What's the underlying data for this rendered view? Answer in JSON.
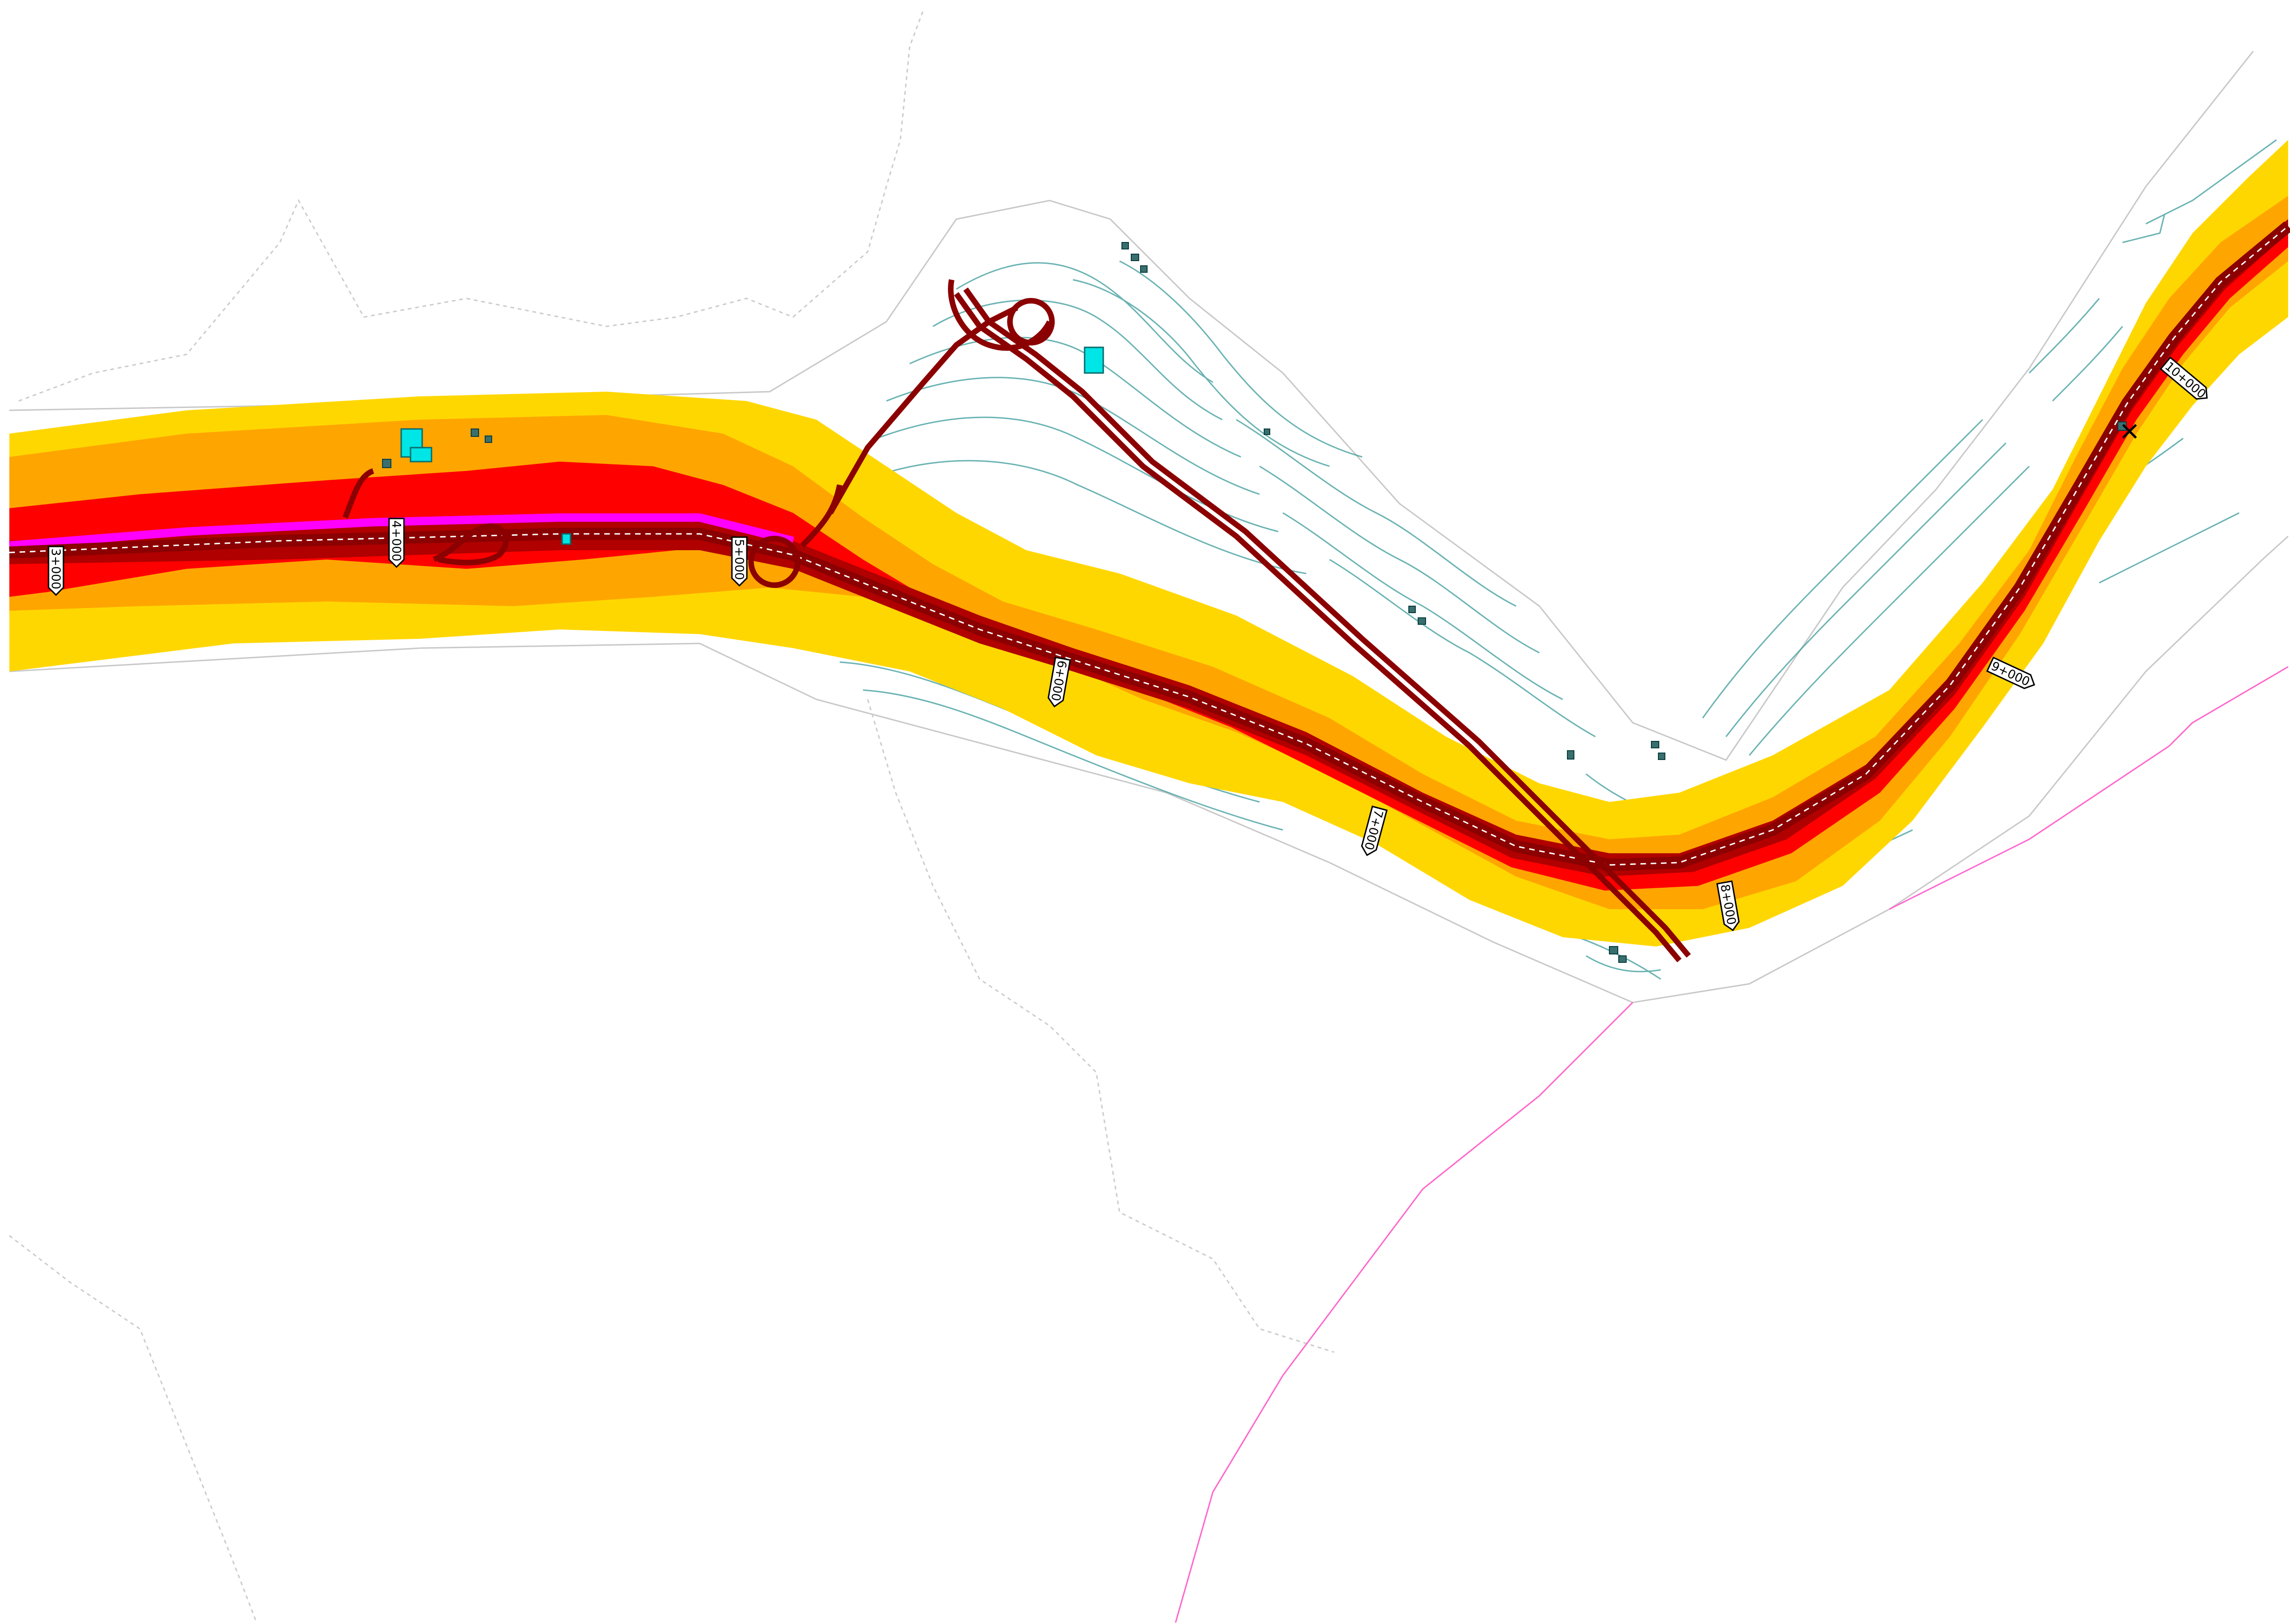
{
  "map": {
    "colors": {
      "background": "#ffffff",
      "zone_outer": "#ffd700",
      "zone_mid": "#ffa500",
      "zone_inner": "#ff0000",
      "zone_core": "#b00000",
      "road": "#8b0000",
      "road_edge": "#ffffff",
      "existing_road": "#ff00ff",
      "contour": "#3a9a9a",
      "boundary": "#c8c8c8",
      "admin_line": "#ff66cc",
      "building": "#00e5e5"
    },
    "chainage_markers": [
      {
        "id": "km3",
        "label": "3+000"
      },
      {
        "id": "km4",
        "label": "4+000"
      },
      {
        "id": "km5",
        "label": "5+000"
      },
      {
        "id": "km6",
        "label": "6+000"
      },
      {
        "id": "km7",
        "label": "7+000"
      },
      {
        "id": "km8",
        "label": "8+000"
      },
      {
        "id": "km9",
        "label": "9+000"
      },
      {
        "id": "km10",
        "label": "10+000"
      }
    ]
  }
}
